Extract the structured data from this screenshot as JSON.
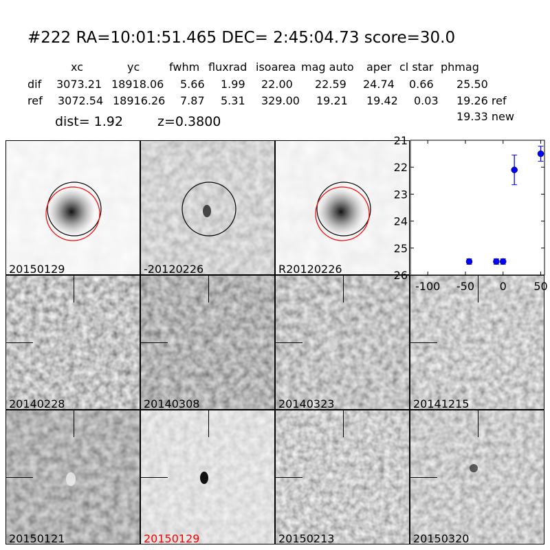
{
  "header": {
    "title": "#222   RA=10:01:51.465 DEC= 2:45:04.73      score=30.0"
  },
  "table": {
    "columns": [
      "xc",
      "yc",
      "fwhm",
      "fluxrad",
      "isoarea",
      "mag auto",
      "aper",
      "cl star",
      "phmag"
    ],
    "rows": [
      {
        "label": "dif",
        "values": [
          "3073.21",
          "18918.06",
          "5.66",
          "1.99",
          "22.00",
          "22.59",
          "24.74",
          "0.66",
          "25.50"
        ]
      },
      {
        "label": "ref",
        "values": [
          "3072.54",
          "18916.26",
          "7.87",
          "5.31",
          "329.00",
          "19.21",
          "19.42",
          "0.03",
          "19.26 ref"
        ]
      }
    ],
    "extra_phmag": "19.33 new",
    "dist": "dist=  1.92",
    "z": "z=0.3800"
  },
  "panels": [
    {
      "label": "20150129",
      "kind": "star",
      "circles": true
    },
    {
      "label": "-20120226",
      "kind": "diff",
      "circles": "black"
    },
    {
      "label": "R20120226",
      "kind": "star",
      "circles": true
    },
    {
      "label": "20140228",
      "kind": "noise"
    },
    {
      "label": "20140308",
      "kind": "noise"
    },
    {
      "label": "20140323",
      "kind": "noise"
    },
    {
      "label": "20141215",
      "kind": "noise"
    },
    {
      "label": "20150121",
      "kind": "noise"
    },
    {
      "label": "20150129",
      "kind": "light",
      "label_color": "#ff0000"
    },
    {
      "label": "20150213",
      "kind": "noise"
    },
    {
      "label": "20150320",
      "kind": "noise"
    }
  ],
  "chart_data": {
    "type": "scatter",
    "xlim": [
      -123,
      55
    ],
    "ylim": [
      26,
      21
    ],
    "xticks": [
      "-100",
      "-50",
      "0",
      "50"
    ],
    "xtick_values": [
      -100,
      -50,
      0,
      50
    ],
    "yticks": [
      "21",
      "22",
      "23",
      "24",
      "25",
      "26"
    ],
    "ytick_values": [
      21,
      22,
      23,
      24,
      25,
      26
    ],
    "color": "#0000ff",
    "points": [
      {
        "x": -45,
        "y": 25.5,
        "err": 0.1
      },
      {
        "x": -9,
        "y": 25.5,
        "err": 0.1
      },
      {
        "x": 0,
        "y": 25.5,
        "err": 0.1
      },
      {
        "x": 15,
        "y": 22.1,
        "err": 0.55
      },
      {
        "x": 50,
        "y": 21.5,
        "err": 0.28
      }
    ]
  }
}
